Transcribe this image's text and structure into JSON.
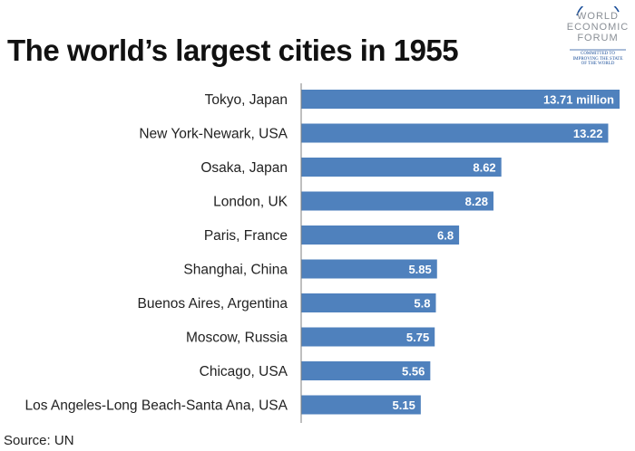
{
  "title": "The world’s largest cities in 1955",
  "source": "Source: UN",
  "logo": {
    "lines": [
      "WORLD",
      "ECONOMIC",
      "FORUM"
    ],
    "tagline": [
      "COMMITTED TO",
      "IMPROVING THE STATE",
      "OF THE WORLD"
    ],
    "color": "#1b4f9a"
  },
  "colors": {
    "bar": "#4f81bd",
    "bar_label": "#ffffff",
    "axis": "#7f7f7f",
    "category_text": "#222222"
  },
  "chart_data": {
    "type": "bar",
    "orientation": "horizontal",
    "categories": [
      "Tokyo, Japan",
      "New York-Newark, USA",
      "Osaka, Japan",
      "London, UK",
      "Paris, France",
      "Shanghai, China",
      "Buenos Aires, Argentina",
      "Moscow, Russia",
      "Chicago, USA",
      "Los Angeles-Long Beach-Santa Ana, USA"
    ],
    "values": [
      13.71,
      13.22,
      8.62,
      8.28,
      6.8,
      5.85,
      5.8,
      5.75,
      5.56,
      5.15
    ],
    "value_labels": [
      "13.71 million",
      "13.22",
      "8.62",
      "8.28",
      "6.8",
      "5.85",
      "5.8",
      "5.75",
      "5.56",
      "5.15"
    ],
    "unit": "million",
    "xlim": [
      0,
      14
    ],
    "grid": false,
    "legend": "none"
  }
}
